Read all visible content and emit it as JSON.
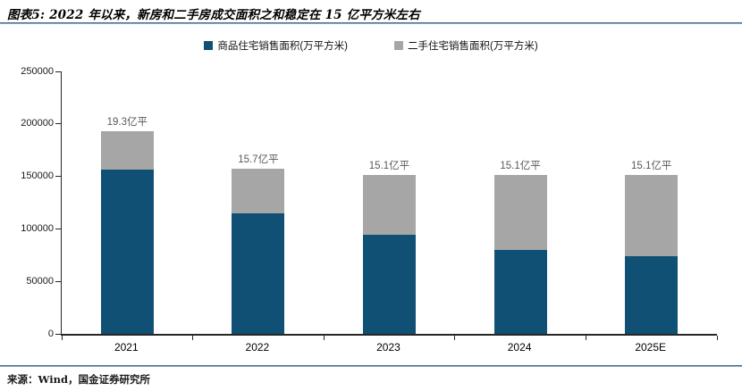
{
  "header": {
    "title": "图表5: 2022 年以来，新房和二手房成交面积之和稳定在 15 亿平方米左右"
  },
  "chart_data": {
    "type": "bar",
    "stacked": true,
    "title": "图表5: 2022 年以来，新房和二手房成交面积之和稳定在 15 亿平方米左右",
    "categories": [
      "2021",
      "2022",
      "2023",
      "2024",
      "2025E"
    ],
    "series": [
      {
        "name": "商品住宅销售面积(万平方米)",
        "color": "#0f5074",
        "values": [
          156500,
          114600,
          94800,
          79700,
          74000
        ]
      },
      {
        "name": "二手住宅销售面积(万平方米)",
        "color": "#a6a6a6",
        "values": [
          36500,
          42400,
          56200,
          71300,
          77000
        ]
      }
    ],
    "total_labels": [
      "19.3亿平",
      "15.7亿平",
      "15.1亿平",
      "15.1亿平",
      "15.1亿平"
    ],
    "xlabel": "",
    "ylabel": "",
    "ylim": [
      0,
      250000
    ],
    "y_ticks": [
      0,
      50000,
      100000,
      150000,
      200000,
      250000
    ],
    "grid": false,
    "legend_position": "top",
    "label_color": "#595959"
  },
  "footer": {
    "source": "来源：Wind，国金证券研究所"
  },
  "colors": {
    "divider": "#2c4d70",
    "axis": "#262626"
  }
}
